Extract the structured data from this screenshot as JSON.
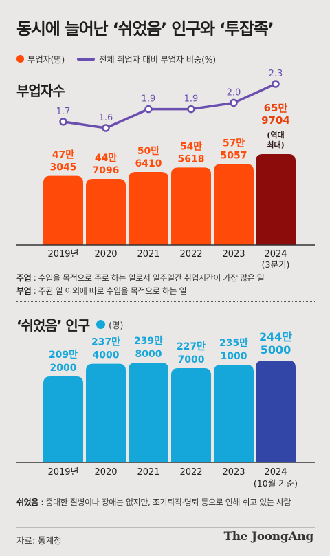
{
  "title": "동시에 늘어난 ‘쉬었음’ 인구와 ‘투잡족’",
  "legend": {
    "bar_label": "부업자(명)",
    "line_label": "전체 취업자 대비 부업자 비중(%)"
  },
  "colors": {
    "orange": "#ff4a0a",
    "dark_red": "#8c0c0c",
    "purple": "#6a4fb0",
    "cyan": "#15a6da",
    "navy": "#3246a8"
  },
  "chart_data": [
    {
      "type": "bar",
      "title": "부업자수",
      "categories": [
        "2019년",
        "2020",
        "2021",
        "2022",
        "2023",
        "2024"
      ],
      "category_notes": [
        "",
        "",
        "",
        "",
        "",
        "(3분기)"
      ],
      "values": [
        473045,
        447096,
        506410,
        545618,
        575057,
        659704
      ],
      "value_labels": [
        [
          "47만",
          "3045"
        ],
        [
          "44만",
          "7096"
        ],
        [
          "50만",
          "6410"
        ],
        [
          "54만",
          "5618"
        ],
        [
          "57만",
          "5057"
        ],
        [
          "65만",
          "9704"
        ]
      ],
      "annotation": [
        "(역대",
        "최대)"
      ],
      "line_series": {
        "name": "전체 취업자 대비 부업자 비중(%)",
        "values": [
          1.7,
          1.6,
          1.9,
          1.9,
          2.0,
          2.3
        ]
      }
    },
    {
      "type": "bar",
      "title": "‘쉬었음’ 인구",
      "unit": "(명)",
      "categories": [
        "2019년",
        "2020",
        "2021",
        "2022",
        "2023",
        "2024"
      ],
      "category_notes": [
        "",
        "",
        "",
        "",
        "",
        "(10월 기준)"
      ],
      "values": [
        2092000,
        2374000,
        2398000,
        2277000,
        2351000,
        2445000
      ],
      "value_labels": [
        [
          "209만",
          "2000"
        ],
        [
          "237만",
          "4000"
        ],
        [
          "239만",
          "8000"
        ],
        [
          "227만",
          "7000"
        ],
        [
          "235만",
          "1000"
        ],
        [
          "244만",
          "5000"
        ]
      ]
    }
  ],
  "notes": {
    "n1_key": "주업",
    "n1_text": " : 수입을 목적으로 주로 하는 일로서 일주일간 취업시간이 가장 많은 일",
    "n2_key": "부업",
    "n2_text": " : 주된 일 이외에 따로 수입을 목적으로 하는 일",
    "n3_key": "쉬었음",
    "n3_text": " : 중대한 질병이나 장애는 없지만, 조기퇴직·명퇴 등으로 인해 쉬고 있는 사람"
  },
  "source": "자료: 통계청",
  "brand": "The JoongAng"
}
